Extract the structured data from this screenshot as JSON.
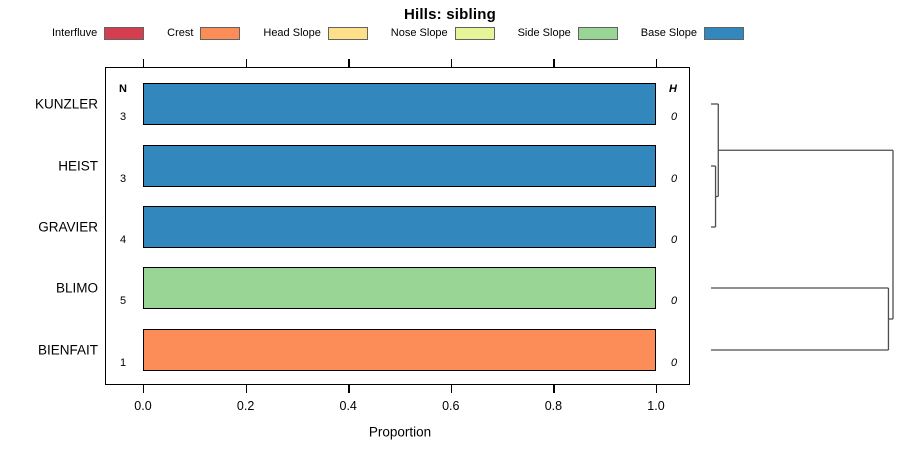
{
  "title": "Hills: sibling",
  "legend": {
    "items": [
      {
        "label": "Interfluve",
        "color": "#D53E4F"
      },
      {
        "label": "Crest",
        "color": "#FC8D59"
      },
      {
        "label": "Head Slope",
        "color": "#FEE08B"
      },
      {
        "label": "Nose Slope",
        "color": "#E6F598"
      },
      {
        "label": "Side Slope",
        "color": "#99D594"
      },
      {
        "label": "Base Slope",
        "color": "#3288BD"
      }
    ]
  },
  "chart_data": {
    "type": "bar",
    "orientation": "horizontal",
    "stacked": true,
    "title": "Hills: sibling",
    "xlabel": "Proportion",
    "xlim": [
      0,
      1
    ],
    "xticks": [
      "0.0",
      "0.2",
      "0.4",
      "0.6",
      "0.8",
      "1.0"
    ],
    "grid": false,
    "legend_position": "top",
    "categories": [
      "KUNZLER",
      "HEIST",
      "GRAVIER",
      "BLIMO",
      "BIENFAIT"
    ],
    "series": [
      {
        "name": "Interfluve",
        "values": [
          0,
          0,
          0,
          0,
          0
        ]
      },
      {
        "name": "Crest",
        "values": [
          0,
          0,
          0,
          0,
          1.0
        ]
      },
      {
        "name": "Head Slope",
        "values": [
          0,
          0,
          0,
          0,
          0
        ]
      },
      {
        "name": "Nose Slope",
        "values": [
          0,
          0,
          0,
          0,
          0
        ]
      },
      {
        "name": "Side Slope",
        "values": [
          0,
          0,
          0,
          1.0,
          0
        ]
      },
      {
        "name": "Base Slope",
        "values": [
          1.0,
          1.0,
          1.0,
          0,
          0
        ]
      }
    ],
    "columns": {
      "n": {
        "header": "N",
        "values": [
          "3",
          "3",
          "4",
          "5",
          "1"
        ]
      },
      "h": {
        "header": "H",
        "values": [
          "0",
          "0",
          "0",
          "0",
          "0"
        ]
      }
    },
    "dendrogram": {
      "note": "drawn right of plot box; merge heights normalized 0-1",
      "tree": {
        "h": 1.0,
        "children": [
          {
            "h": 0.04,
            "children": [
              {
                "leaf": "KUNZLER"
              },
              {
                "h": 0.025,
                "children": [
                  {
                    "leaf": "HEIST"
                  },
                  {
                    "leaf": "GRAVIER"
                  }
                ]
              }
            ]
          },
          {
            "h": 0.975,
            "children": [
              {
                "leaf": "BLIMO"
              },
              {
                "leaf": "BIENFAIT"
              }
            ]
          }
        ]
      }
    }
  }
}
